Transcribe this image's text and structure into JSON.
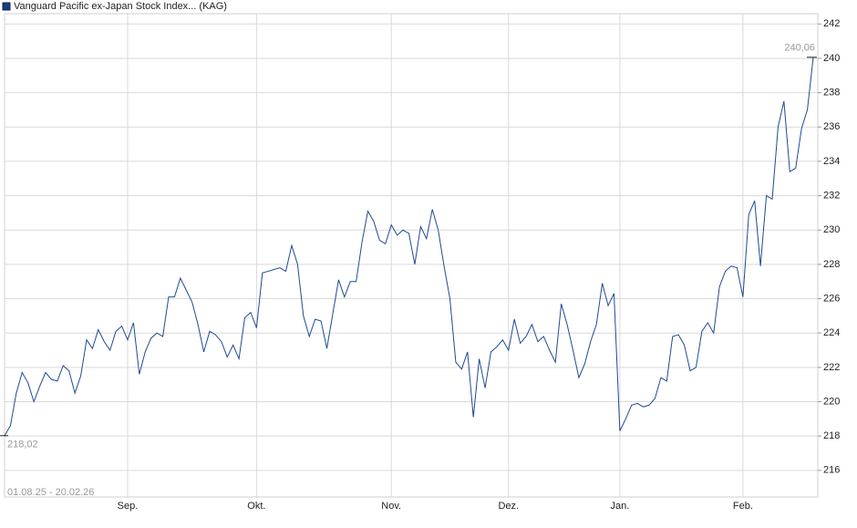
{
  "chart_data": {
    "type": "line",
    "title": "Vanguard Pacific ex-Japan Stock Index... (KAG)",
    "date_range": "01.08.25 - 20.02.26",
    "categories": [
      null,
      null,
      null,
      null,
      null,
      null,
      null,
      null,
      null,
      null,
      null,
      null,
      null,
      null,
      null,
      null,
      null,
      null,
      null,
      null,
      null,
      "Sep.",
      null,
      null,
      null,
      null,
      null,
      null,
      null,
      null,
      null,
      null,
      null,
      null,
      null,
      null,
      null,
      null,
      null,
      null,
      null,
      null,
      null,
      "Okt.",
      null,
      null,
      null,
      null,
      null,
      null,
      null,
      null,
      null,
      null,
      null,
      null,
      null,
      null,
      null,
      null,
      null,
      null,
      null,
      null,
      null,
      null,
      "Nov.",
      null,
      null,
      null,
      null,
      null,
      null,
      null,
      null,
      null,
      null,
      null,
      null,
      null,
      null,
      null,
      null,
      null,
      null,
      null,
      "Dez.",
      null,
      null,
      null,
      null,
      null,
      null,
      null,
      null,
      null,
      null,
      null,
      null,
      null,
      null,
      null,
      null,
      null,
      null,
      "Jan.",
      null,
      null,
      null,
      null,
      null,
      null,
      null,
      null,
      null,
      null,
      null,
      null,
      null,
      null,
      null,
      null,
      null,
      null,
      null,
      null,
      "Feb.",
      null,
      null,
      null,
      null,
      null,
      null,
      null,
      null,
      null,
      null,
      null,
      null
    ],
    "series": [
      {
        "name": "Vanguard Pacific ex-Japan Stock Index... (KAG)",
        "color": "#1f4a94",
        "values": [
          218.02,
          218.6,
          220.5,
          221.7,
          221.1,
          220.0,
          220.9,
          221.7,
          221.3,
          221.2,
          222.1,
          221.8,
          220.5,
          221.5,
          223.6,
          223.1,
          224.2,
          223.5,
          223.0,
          224.1,
          224.4,
          223.6,
          224.6,
          221.6,
          222.9,
          223.7,
          224.0,
          223.8,
          226.1,
          226.1,
          227.2,
          226.5,
          225.8,
          224.5,
          222.9,
          224.1,
          223.9,
          223.5,
          222.6,
          223.3,
          222.5,
          224.9,
          225.2,
          224.3,
          227.5,
          227.6,
          227.7,
          227.8,
          227.6,
          229.1,
          228.0,
          225.0,
          223.8,
          224.8,
          224.7,
          223.1,
          225.1,
          227.1,
          226.1,
          227.0,
          227.0,
          229.3,
          231.1,
          230.5,
          229.4,
          229.2,
          230.3,
          229.7,
          230.0,
          229.8,
          228.0,
          230.2,
          229.5,
          231.2,
          230.0,
          227.9,
          226.0,
          222.3,
          221.9,
          222.9,
          219.1,
          222.5,
          220.8,
          222.9,
          223.2,
          223.6,
          223.0,
          224.8,
          223.4,
          223.8,
          224.5,
          223.5,
          223.8,
          223.0,
          222.3,
          225.7,
          224.5,
          223.0,
          221.4,
          222.2,
          223.5,
          224.5,
          226.9,
          225.6,
          226.3,
          218.3,
          219.0,
          219.8,
          219.9,
          219.7,
          219.8,
          220.2,
          221.4,
          221.2,
          223.8,
          223.9,
          223.3,
          221.8,
          222.0,
          224.1,
          224.6,
          224.0,
          226.7,
          227.6,
          227.9,
          227.8,
          226.1,
          230.9,
          231.7,
          227.9,
          232.0,
          231.8,
          236.0,
          237.5,
          233.4,
          233.6,
          235.9,
          237.0,
          240.06
        ],
        "value_labels": [
          "218,02",
          null,
          null,
          null,
          null,
          null,
          null,
          null,
          null,
          null,
          null,
          null,
          null,
          null,
          null,
          null,
          null,
          null,
          null,
          null,
          null,
          null,
          null,
          null,
          null,
          null,
          null,
          null,
          null,
          null,
          null,
          null,
          null,
          null,
          null,
          null,
          null,
          null,
          null,
          null,
          null,
          null,
          null,
          null,
          null,
          null,
          null,
          null,
          null,
          null,
          null,
          null,
          null,
          null,
          null,
          null,
          null,
          null,
          null,
          null,
          null,
          null,
          null,
          null,
          null,
          null,
          null,
          null,
          null,
          null,
          null,
          null,
          null,
          null,
          null,
          null,
          null,
          null,
          null,
          null,
          null,
          null,
          null,
          null,
          null,
          null,
          null,
          null,
          null,
          null,
          null,
          null,
          null,
          null,
          null,
          null,
          null,
          null,
          null,
          null,
          null,
          null,
          null,
          null,
          null,
          null,
          null,
          null,
          null,
          null,
          null,
          null,
          null,
          null,
          null,
          null,
          null,
          null,
          null,
          null,
          null,
          null,
          null,
          null,
          null,
          null,
          null,
          null,
          null,
          null,
          null,
          null,
          null,
          null,
          null,
          null,
          null,
          null,
          "240,06"
        ]
      }
    ],
    "ylim": [
      214.45,
      242.6
    ],
    "yticks": [
      216,
      218,
      220,
      222,
      224,
      226,
      228,
      230,
      232,
      234,
      236,
      238,
      240,
      242
    ],
    "grid": true
  }
}
